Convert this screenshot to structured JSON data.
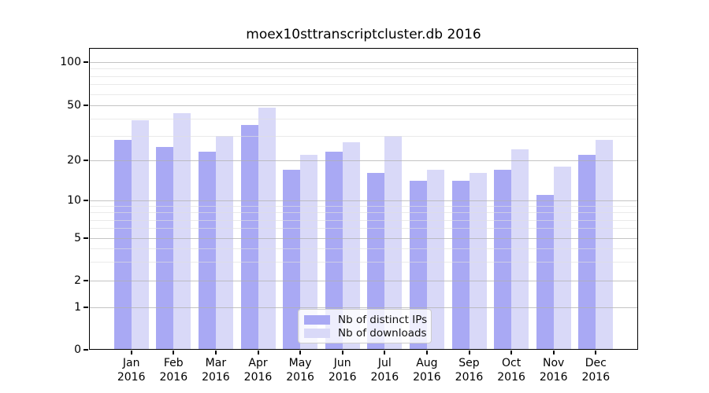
{
  "title": "moex10sttranscriptcluster.db 2016",
  "chart_data": {
    "type": "bar",
    "title": "moex10sttranscriptcluster.db 2016",
    "y_scale": "symlog",
    "grid": "horizontal",
    "legend_position": "lower center",
    "xlabel": "",
    "ylabel": "",
    "year": "2016",
    "months": [
      "Jan",
      "Feb",
      "Mar",
      "Apr",
      "May",
      "Jun",
      "Jul",
      "Aug",
      "Sep",
      "Oct",
      "Nov",
      "Dec"
    ],
    "categories": [
      "Jan 2016",
      "Feb 2016",
      "Mar 2016",
      "Apr 2016",
      "May 2016",
      "Jun 2016",
      "Jul 2016",
      "Aug 2016",
      "Sep 2016",
      "Oct 2016",
      "Nov 2016",
      "Dec 2016"
    ],
    "series": [
      {
        "name": "Nb of distinct IPs",
        "color": "#a9a9f4",
        "values": [
          28,
          25,
          23,
          36,
          17,
          23,
          16,
          14,
          14,
          17,
          11,
          22
        ]
      },
      {
        "name": "Nb of downloads",
        "color": "#d9d9f8",
        "values": [
          39,
          44,
          30,
          48,
          22,
          27,
          30,
          17,
          16,
          24,
          18,
          28
        ]
      }
    ],
    "y_ticks": [
      100,
      50,
      20,
      10,
      5,
      2,
      1,
      0
    ],
    "y_minor_ticks": [
      3,
      4,
      6,
      7,
      8,
      9,
      30,
      40,
      60,
      70,
      80,
      90
    ],
    "ylim": [
      0,
      126
    ]
  }
}
